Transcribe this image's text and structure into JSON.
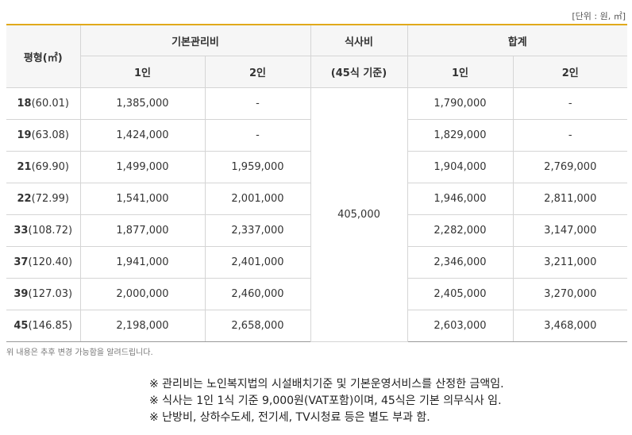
{
  "unit_label": "[단위 : 원, ㎡]",
  "headers": {
    "pyeong": "평형(㎡)",
    "basic_fee": "기본관리비",
    "meal_fee": "식사비",
    "total": "합계",
    "one_person": "1인",
    "two_person": "2인",
    "meal_basis": "(45식 기준)"
  },
  "rows": [
    {
      "size": "18",
      "area": "(60.01)",
      "basic_1": "1,385,000",
      "basic_2": "-",
      "total_1": "1,790,000",
      "total_2": "-"
    },
    {
      "size": "19",
      "area": "(63.08)",
      "basic_1": "1,424,000",
      "basic_2": "-",
      "total_1": "1,829,000",
      "total_2": "-"
    },
    {
      "size": "21",
      "area": "(69.90)",
      "basic_1": "1,499,000",
      "basic_2": "1,959,000",
      "total_1": "1,904,000",
      "total_2": "2,769,000"
    },
    {
      "size": "22",
      "area": "(72.99)",
      "basic_1": "1,541,000",
      "basic_2": "2,001,000",
      "total_1": "1,946,000",
      "total_2": "2,811,000"
    },
    {
      "size": "33",
      "area": "(108.72)",
      "basic_1": "1,877,000",
      "basic_2": "2,337,000",
      "total_1": "2,282,000",
      "total_2": "3,147,000"
    },
    {
      "size": "37",
      "area": "(120.40)",
      "basic_1": "1,941,000",
      "basic_2": "2,401,000",
      "total_1": "2,346,000",
      "total_2": "3,211,000"
    },
    {
      "size": "39",
      "area": "(127.03)",
      "basic_1": "2,000,000",
      "basic_2": "2,460,000",
      "total_1": "2,405,000",
      "total_2": "3,270,000"
    },
    {
      "size": "45",
      "area": "(146.85)",
      "basic_1": "2,198,000",
      "basic_2": "2,658,000",
      "total_1": "2,603,000",
      "total_2": "3,468,000"
    }
  ],
  "meal_value": "405,000",
  "small_note": "위 내용은 추후 변경 가능함을 알려드립니다.",
  "notes": [
    "※ 관리비는 노인복지법의 시설배치기준 및 기본운영서비스를 산정한 금액임.",
    "※ 식사는 1인 1식 기준 9,000원(VAT포함)이며, 45식은 기본 의무식사 임.",
    "※ 난방비, 상하수도세, 전기세, TV시청료 등은 별도 부과 함."
  ],
  "colors": {
    "accent_border": "#e0a91b",
    "header_bg": "#f6f6f6"
  }
}
